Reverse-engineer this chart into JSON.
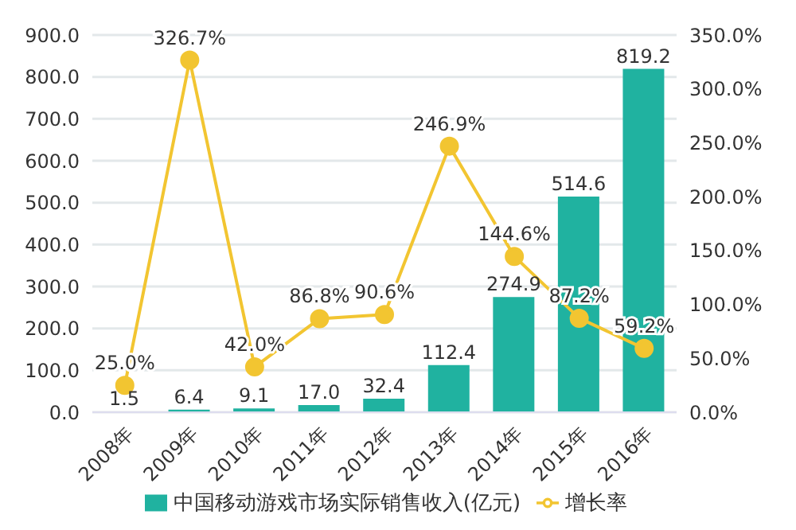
{
  "chart_data": {
    "type": "bar",
    "categories": [
      "2008年",
      "2009年",
      "2010年",
      "2011年",
      "2012年",
      "2013年",
      "2014年",
      "2015年",
      "2016年"
    ],
    "series": [
      {
        "name": "中国移动游戏市场实际销售收入(亿元)",
        "color": "#20b2a0",
        "values": [
          1.5,
          6.4,
          9.1,
          17.0,
          32.4,
          112.4,
          274.9,
          514.6,
          819.2
        ],
        "value_labels": [
          "1.5",
          "6.4",
          "9.1",
          "17.0",
          "32.4",
          "112.4",
          "274.9",
          "514.6",
          "819.2"
        ]
      },
      {
        "name": "增长率",
        "type": "line",
        "axis": "y2",
        "color": "#f2c531",
        "marker": "circle",
        "values": [
          25.0,
          326.7,
          42.0,
          86.8,
          90.6,
          246.9,
          144.6,
          87.2,
          59.2
        ],
        "value_labels": [
          "25.0%",
          "326.7%",
          "42.0%",
          "86.8%",
          "90.6%",
          "246.9%",
          "144.6%",
          "87.2%",
          "59.2%"
        ]
      }
    ],
    "ylim": [
      0,
      900
    ],
    "yticks": [
      {
        "value": 0,
        "label": "0.0"
      },
      {
        "value": 100,
        "label": "100.0"
      },
      {
        "value": 200,
        "label": "200.0"
      },
      {
        "value": 300,
        "label": "300.0"
      },
      {
        "value": 400,
        "label": "400.0"
      },
      {
        "value": 500,
        "label": "500.0"
      },
      {
        "value": 600,
        "label": "600.0"
      },
      {
        "value": 700,
        "label": "700.0"
      },
      {
        "value": 800,
        "label": "800.0"
      },
      {
        "value": 900,
        "label": "900.0"
      }
    ],
    "y2lim": [
      0,
      350
    ],
    "y2ticks": [
      {
        "value": 0,
        "label": "0.0%"
      },
      {
        "value": 50,
        "label": "50.0%"
      },
      {
        "value": 100,
        "label": "100.0%"
      },
      {
        "value": 150,
        "label": "150.0%"
      },
      {
        "value": 200,
        "label": "200.0%"
      },
      {
        "value": 250,
        "label": "250.0%"
      },
      {
        "value": 300,
        "label": "300.0%"
      },
      {
        "value": 350,
        "label": "350.0%"
      }
    ],
    "grid": "y",
    "legend": "bottom"
  }
}
